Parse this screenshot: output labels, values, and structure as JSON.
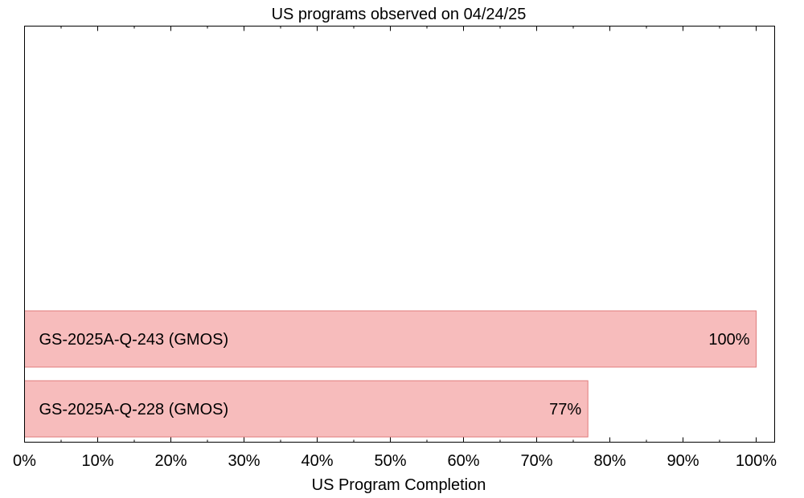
{
  "chart_data": {
    "type": "bar",
    "orientation": "horizontal",
    "title": "US programs observed on 04/24/25",
    "xlabel": "US Program Completion",
    "ylabel": "",
    "xlim": [
      0,
      100
    ],
    "x_ticks": [
      "0%",
      "10%",
      "20%",
      "30%",
      "40%",
      "50%",
      "60%",
      "70%",
      "80%",
      "90%",
      "100%"
    ],
    "bar_color": "#f7bcbc",
    "bar_edge_color": "#e07b7b",
    "grid": false,
    "bars": [
      {
        "category": "GS-2025A-Q-243 (GMOS)",
        "value": 100,
        "label": "100%"
      },
      {
        "category": "GS-2025A-Q-228 (GMOS)",
        "value": 77,
        "label": "77%"
      }
    ]
  }
}
